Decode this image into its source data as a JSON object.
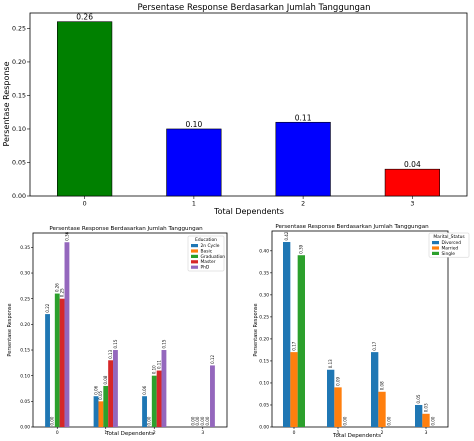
{
  "chart_data": [
    {
      "type": "bar",
      "title": "Persentase Response Berdasarkan Jumlah Tanggungan",
      "xlabel": "Total Dependents",
      "ylabel": "Persentase Response",
      "categories": [
        "0",
        "1",
        "2",
        "3"
      ],
      "values": [
        0.26,
        0.1,
        0.11,
        0.04
      ],
      "value_labels": [
        "0.26",
        "0.10",
        "0.11",
        "0.04"
      ],
      "colors": [
        "#008000",
        "#0000ff",
        "#0000ff",
        "#ff0000"
      ],
      "ylim": [
        0,
        0.273
      ],
      "yticks": [
        "0.00",
        "0.05",
        "0.10",
        "0.15",
        "0.20",
        "0.25"
      ],
      "grid": false
    },
    {
      "type": "bar",
      "title": "Persentase Response Berdasarkan Jumlah Tanggungan",
      "xlabel": "Total Dependents",
      "ylabel": "Persentase Response",
      "categories": [
        "0",
        "1",
        "2",
        "3"
      ],
      "legend_title": "Education",
      "legend_position": "top-right",
      "ylim": [
        0,
        0.378
      ],
      "yticks": [
        "0.00",
        "0.05",
        "0.10",
        "0.15",
        "0.20",
        "0.25",
        "0.30",
        "0.35"
      ],
      "series": [
        {
          "name": "2n Cycle",
          "color": "#1f77b4",
          "values": [
            0.22,
            0.06,
            0.06,
            0.0
          ],
          "labels": [
            "0.22",
            "0.06",
            "0.06",
            "0.00"
          ]
        },
        {
          "name": "Basic",
          "color": "#ff7f0e",
          "values": [
            0.0,
            0.05,
            0.0,
            0.0
          ],
          "labels": [
            "0.00",
            "0.05",
            "0.00",
            "0.00"
          ]
        },
        {
          "name": "Graduation",
          "color": "#2ca02c",
          "values": [
            0.26,
            0.08,
            0.1,
            0.0
          ],
          "labels": [
            "0.26",
            "0.08",
            "0.10",
            "0.00"
          ]
        },
        {
          "name": "Master",
          "color": "#d62728",
          "values": [
            0.25,
            0.13,
            0.11,
            0.0
          ],
          "labels": [
            "0.25",
            "0.13",
            "0.11",
            "0.00"
          ]
        },
        {
          "name": "PhD",
          "color": "#9467bd",
          "values": [
            0.36,
            0.15,
            0.15,
            0.12
          ],
          "labels": [
            "0.36",
            "0.15",
            "0.15",
            "0.12"
          ]
        }
      ]
    },
    {
      "type": "bar",
      "title": "Persentase Response Berdasarkan Jumlah Tanggungan",
      "xlabel": "Total Dependents",
      "ylabel": "Persentase Response",
      "categories": [
        "0",
        "1",
        "2",
        "3"
      ],
      "legend_title": "Marital_Status",
      "legend_position": "top-right",
      "ylim": [
        0,
        0.445
      ],
      "yticks": [
        "0.00",
        "0.05",
        "0.10",
        "0.15",
        "0.20",
        "0.25",
        "0.30",
        "0.35",
        "0.40"
      ],
      "series": [
        {
          "name": "Divorced",
          "color": "#1f77b4",
          "values": [
            0.42,
            0.13,
            0.17,
            0.05
          ],
          "labels": [
            "0.42",
            "0.13",
            "0.17",
            "0.05"
          ]
        },
        {
          "name": "Married",
          "color": "#ff7f0e",
          "values": [
            0.17,
            0.09,
            0.08,
            0.03
          ],
          "labels": [
            "0.17",
            "0.09",
            "0.08",
            "0.03"
          ]
        },
        {
          "name": "Single",
          "color": "#2ca02c",
          "values": [
            0.39,
            0.0,
            0.0,
            0.0
          ],
          "labels": [
            "0.39",
            "0.00",
            "0.00",
            "0.00"
          ]
        }
      ]
    }
  ]
}
